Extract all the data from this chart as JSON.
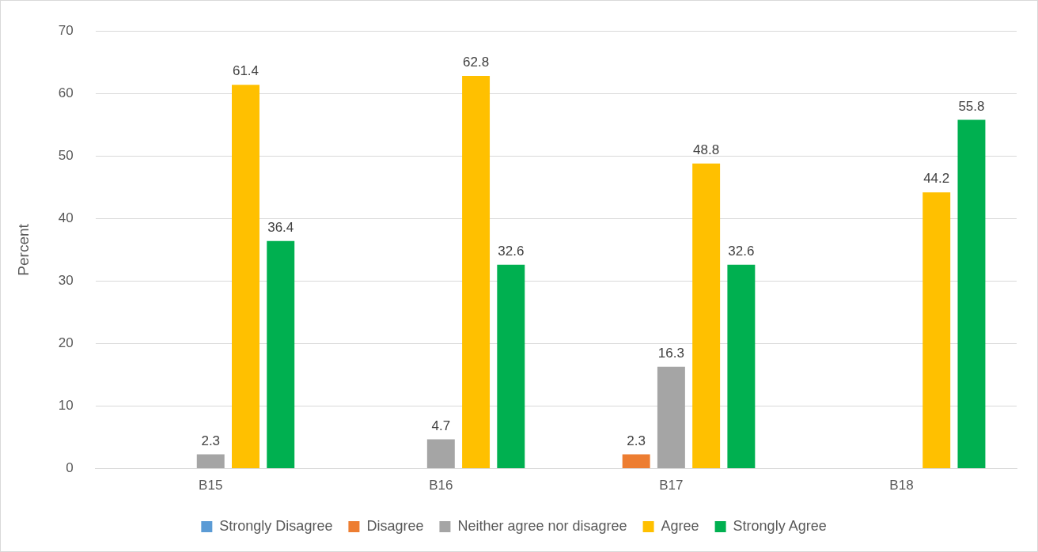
{
  "chart_data": {
    "type": "bar",
    "ylabel": "Percent",
    "categories": [
      "B15",
      "B16",
      "B17",
      "B18"
    ],
    "series": [
      {
        "name": "Strongly Disagree",
        "color": "#5b9bd5",
        "values": [
          null,
          null,
          null,
          null
        ]
      },
      {
        "name": "Disagree",
        "color": "#ed7d31",
        "values": [
          null,
          null,
          2.3,
          null
        ]
      },
      {
        "name": "Neither agree nor disagree",
        "color": "#a5a5a5",
        "values": [
          2.3,
          4.7,
          16.3,
          null
        ]
      },
      {
        "name": "Agree",
        "color": "#ffc000",
        "values": [
          61.4,
          62.8,
          48.8,
          44.2
        ]
      },
      {
        "name": "Strongly Agree",
        "color": "#00b050",
        "values": [
          36.4,
          32.6,
          32.6,
          55.8
        ]
      }
    ],
    "ylim": [
      0,
      70
    ],
    "yticks": [
      0,
      10,
      20,
      30,
      40,
      50,
      60,
      70
    ],
    "grid": "y",
    "legend": "bottom",
    "data_labels": true
  }
}
